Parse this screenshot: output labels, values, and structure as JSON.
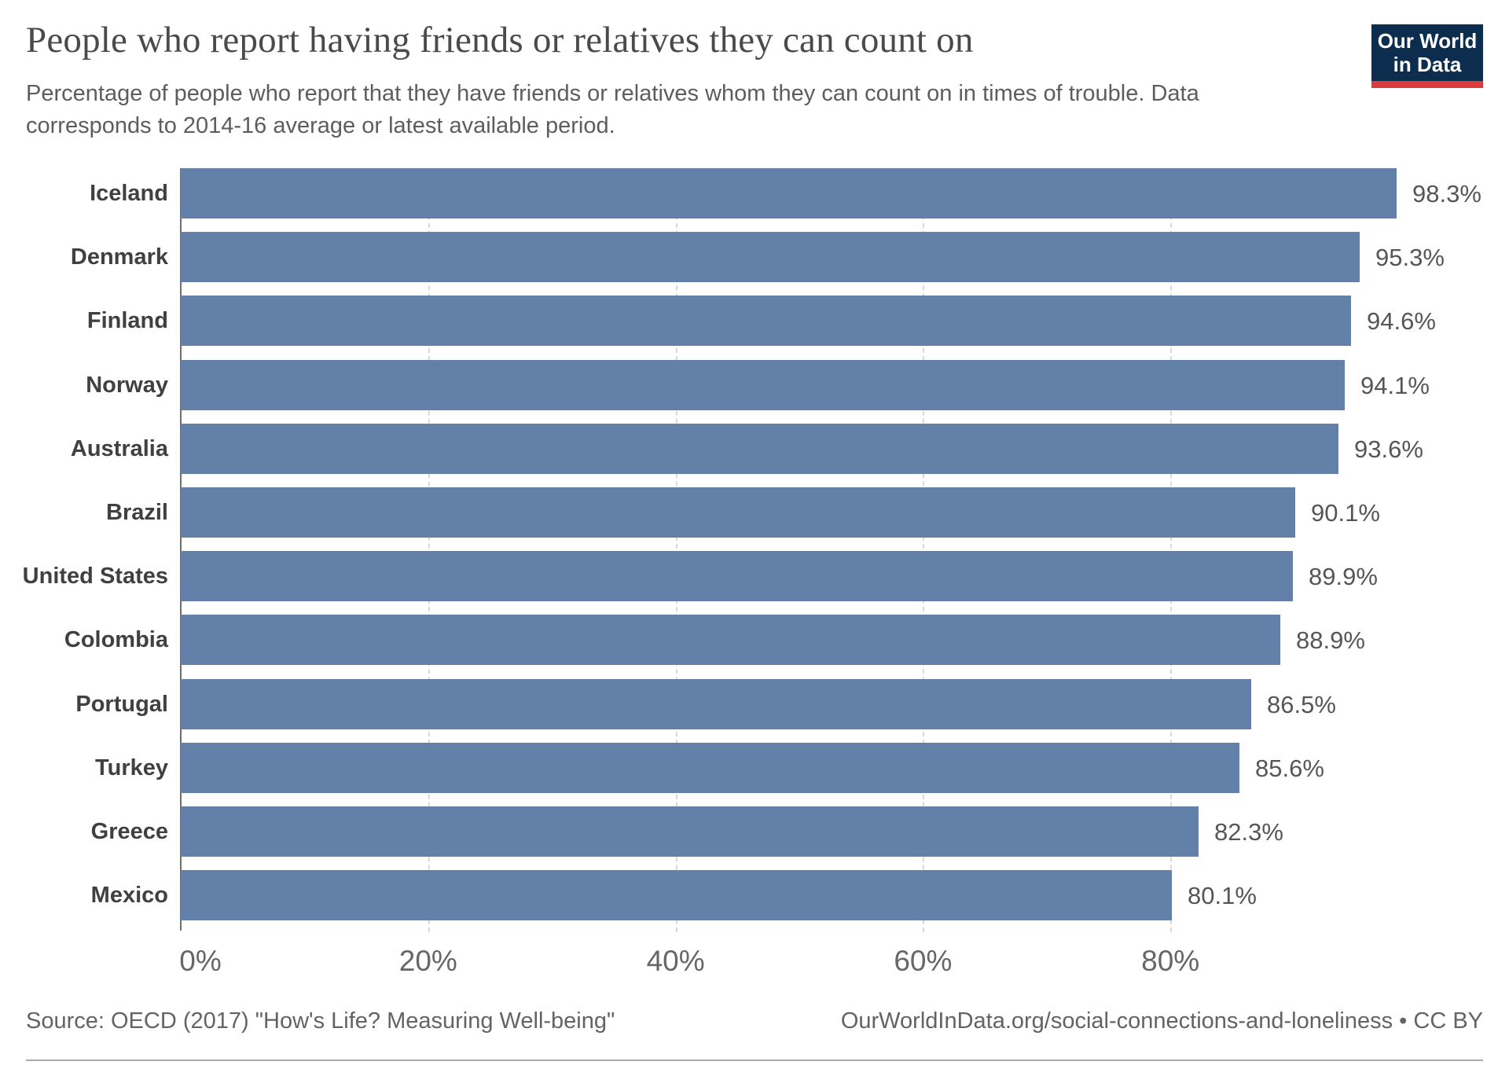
{
  "header": {
    "title": "People who report having friends or relatives they can count on",
    "subtitle_line1": "Percentage of people who report that they have friends or relatives whom they can count on in times of trouble. Data",
    "subtitle_line2": "corresponds to 2014-16 average or latest available period.",
    "logo_line1": "Our World",
    "logo_line2": "in Data"
  },
  "chart_data": {
    "type": "bar",
    "orientation": "horizontal",
    "title": "People who report having friends or relatives they can count on",
    "xlabel": "",
    "ylabel": "",
    "xlim": [
      0,
      100
    ],
    "grid": "vertical dashed gridlines at 20/40/60/80, drawn behind bars",
    "legend": "none",
    "categories": [
      "Iceland",
      "Denmark",
      "Finland",
      "Norway",
      "Australia",
      "Brazil",
      "United States",
      "Colombia",
      "Portugal",
      "Turkey",
      "Greece",
      "Mexico"
    ],
    "values": [
      98.3,
      95.3,
      94.6,
      94.1,
      93.6,
      90.1,
      89.9,
      88.9,
      86.5,
      85.6,
      82.3,
      80.1
    ],
    "value_labels": [
      "98.3%",
      "95.3%",
      "94.6%",
      "94.1%",
      "93.6%",
      "90.1%",
      "89.9%",
      "88.9%",
      "86.5%",
      "85.6%",
      "82.3%",
      "80.1%"
    ],
    "x_ticks": [
      {
        "value": 0,
        "label": "0%"
      },
      {
        "value": 20,
        "label": "20%"
      },
      {
        "value": 40,
        "label": "40%"
      },
      {
        "value": 60,
        "label": "60%"
      },
      {
        "value": 80,
        "label": "80%"
      }
    ],
    "bar_color": "#6380a9"
  },
  "colors": {
    "bar": "#6380a9",
    "logo_navy": "#0d2d4e",
    "logo_red": "#da3b3b",
    "gridline": "#d9d9d9",
    "axis": "#6f6f6f",
    "title_text": "#4a4a4a",
    "subtitle_text": "#5d5d5d",
    "country_text": "#404040",
    "value_text": "#565656",
    "footer_text": "#636363"
  },
  "footer": {
    "source": "Source: OECD (2017) \"How's Life? Measuring Well-being\"",
    "link": "OurWorldInData.org/social-connections-and-loneliness • CC BY"
  }
}
